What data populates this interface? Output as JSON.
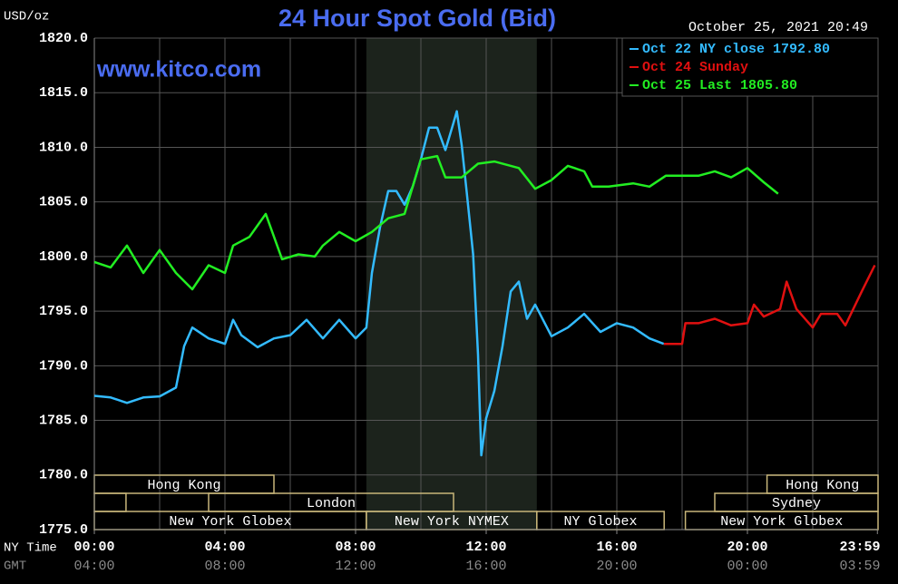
{
  "chart_data": {
    "type": "line",
    "title": "24 Hour Spot Gold (Bid)",
    "subtitle": "October 25, 2021 20:49",
    "watermark": "www.kitco.com",
    "y_label": "USD/oz",
    "x_label": "NY Time",
    "x2_label": "GMT",
    "xlim": [
      0,
      24
    ],
    "xticks": [
      {
        "value": 0,
        "label": "00:00"
      },
      {
        "value": 4,
        "label": "04:00"
      },
      {
        "value": 8,
        "label": "08:00"
      },
      {
        "value": 12,
        "label": "12:00"
      },
      {
        "value": 16,
        "label": "16:00"
      },
      {
        "value": 20,
        "label": "20:00"
      },
      {
        "value": 23.98,
        "label": "23:59"
      }
    ],
    "x2_ticklabels": [
      "04:00",
      "08:00",
      "12:00",
      "16:00",
      "20:00",
      "00:00",
      "03:59"
    ],
    "ylim": [
      1775,
      1820
    ],
    "yticks": [
      {
        "value": 1775,
        "label": "1775.0"
      },
      {
        "value": 1780,
        "label": "1780.0"
      },
      {
        "value": 1785,
        "label": "1785.0"
      },
      {
        "value": 1790,
        "label": "1790.0"
      },
      {
        "value": 1795,
        "label": "1795.0"
      },
      {
        "value": 1800,
        "label": "1800.0"
      },
      {
        "value": 1805,
        "label": "1805.0"
      },
      {
        "value": 1810,
        "label": "1810.0"
      },
      {
        "value": 1815,
        "label": "1815.0"
      },
      {
        "value": 1820,
        "label": "1820.0"
      }
    ],
    "grid": true,
    "legend": "top-right",
    "highlight_xrange": [
      8.33,
      13.55
    ],
    "sessions": [
      {
        "label": "Hong Kong",
        "start": 0,
        "end": 5.5,
        "row": 0
      },
      {
        "label": "Hong Kong",
        "start": 20.6,
        "end": 24,
        "row": 0
      },
      {
        "label": null,
        "start": 0,
        "end": 0.97,
        "row": 1
      },
      {
        "label": "London",
        "start": 3.5,
        "end": 11,
        "row": 1
      },
      {
        "label": "Sydney",
        "start": 19,
        "end": 24,
        "row": 1
      },
      {
        "label": "New York Globex",
        "start": 0,
        "end": 8.33,
        "row": 2
      },
      {
        "label": "New York NYMEX",
        "start": 8.33,
        "end": 13.55,
        "row": 2
      },
      {
        "label": "NY Globex",
        "start": 13.55,
        "end": 17.45,
        "row": 2
      },
      {
        "label": "New York Globex",
        "start": 18.1,
        "end": 24,
        "row": 2
      }
    ],
    "series": [
      {
        "name": "Oct 22 NY close 1792.80",
        "color": "#33bbff",
        "x": [
          0,
          0.5,
          1,
          1.5,
          2,
          2.5,
          2.75,
          3,
          3.5,
          4,
          4.25,
          4.5,
          5,
          5.5,
          6,
          6.5,
          7,
          7.5,
          8,
          8.33,
          8.5,
          8.75,
          9,
          9.25,
          9.5,
          9.75,
          10,
          10.25,
          10.5,
          10.75,
          11,
          11.1,
          11.25,
          11.4,
          11.6,
          11.75,
          11.85,
          12,
          12.25,
          12.5,
          12.75,
          13,
          13.25,
          13.5,
          14,
          14.5,
          15,
          15.5,
          16,
          16.5,
          17,
          17.44
        ],
        "values": [
          1787.25,
          1787.1,
          1786.6,
          1787.1,
          1787.2,
          1788.0,
          1791.8,
          1793.5,
          1792.5,
          1792.0,
          1794.2,
          1792.8,
          1791.7,
          1792.5,
          1792.8,
          1794.2,
          1792.5,
          1794.2,
          1792.5,
          1793.5,
          1798.5,
          1802.7,
          1806.0,
          1806.0,
          1804.75,
          1806.4,
          1808.9,
          1811.8,
          1811.8,
          1809.75,
          1812.25,
          1813.3,
          1810.2,
          1806.0,
          1800.2,
          1791.0,
          1781.8,
          1785.2,
          1787.7,
          1791.8,
          1796.8,
          1797.7,
          1794.3,
          1795.6,
          1792.7,
          1793.5,
          1794.75,
          1793.1,
          1793.9,
          1793.5,
          1792.5,
          1792.0
        ]
      },
      {
        "name": "Oct 24 Sunday",
        "color": "#e01010",
        "x": [
          17.44,
          18,
          18.1,
          18.5,
          19,
          19.5,
          20,
          20.2,
          20.5,
          21,
          21.2,
          21.5,
          22,
          22.25,
          22.75,
          23,
          23.5,
          23.9
        ],
        "values": [
          1792.0,
          1792.0,
          1793.9,
          1793.9,
          1794.3,
          1793.7,
          1793.9,
          1795.6,
          1794.5,
          1795.2,
          1797.7,
          1795.2,
          1793.5,
          1794.75,
          1794.75,
          1793.7,
          1796.8,
          1799.2
        ]
      },
      {
        "name": "Oct 25 Last 1805.80",
        "color": "#22ee22",
        "x": [
          0,
          0.5,
          1,
          1.5,
          2,
          2.5,
          3,
          3.5,
          4,
          4.25,
          4.75,
          5.25,
          5.75,
          6.25,
          6.75,
          7,
          7.5,
          8,
          8.5,
          9,
          9.5,
          10,
          10.5,
          10.75,
          11.25,
          11.75,
          12.25,
          13,
          13.5,
          14,
          14.5,
          15,
          15.25,
          15.75,
          16.5,
          17,
          17.5,
          18.5,
          19,
          19.5,
          20,
          20.5,
          20.94
        ],
        "values": [
          1799.5,
          1799.0,
          1801.0,
          1798.5,
          1800.6,
          1798.5,
          1797.0,
          1799.2,
          1798.5,
          1801.0,
          1801.8,
          1803.9,
          1799.75,
          1800.2,
          1800.0,
          1801.0,
          1802.25,
          1801.4,
          1802.25,
          1803.5,
          1803.9,
          1808.9,
          1809.2,
          1807.25,
          1807.25,
          1808.5,
          1808.7,
          1808.1,
          1806.2,
          1807.0,
          1808.3,
          1807.8,
          1806.4,
          1806.4,
          1806.7,
          1806.4,
          1807.4,
          1807.4,
          1807.8,
          1807.25,
          1808.1,
          1806.8,
          1805.75
        ]
      }
    ]
  }
}
